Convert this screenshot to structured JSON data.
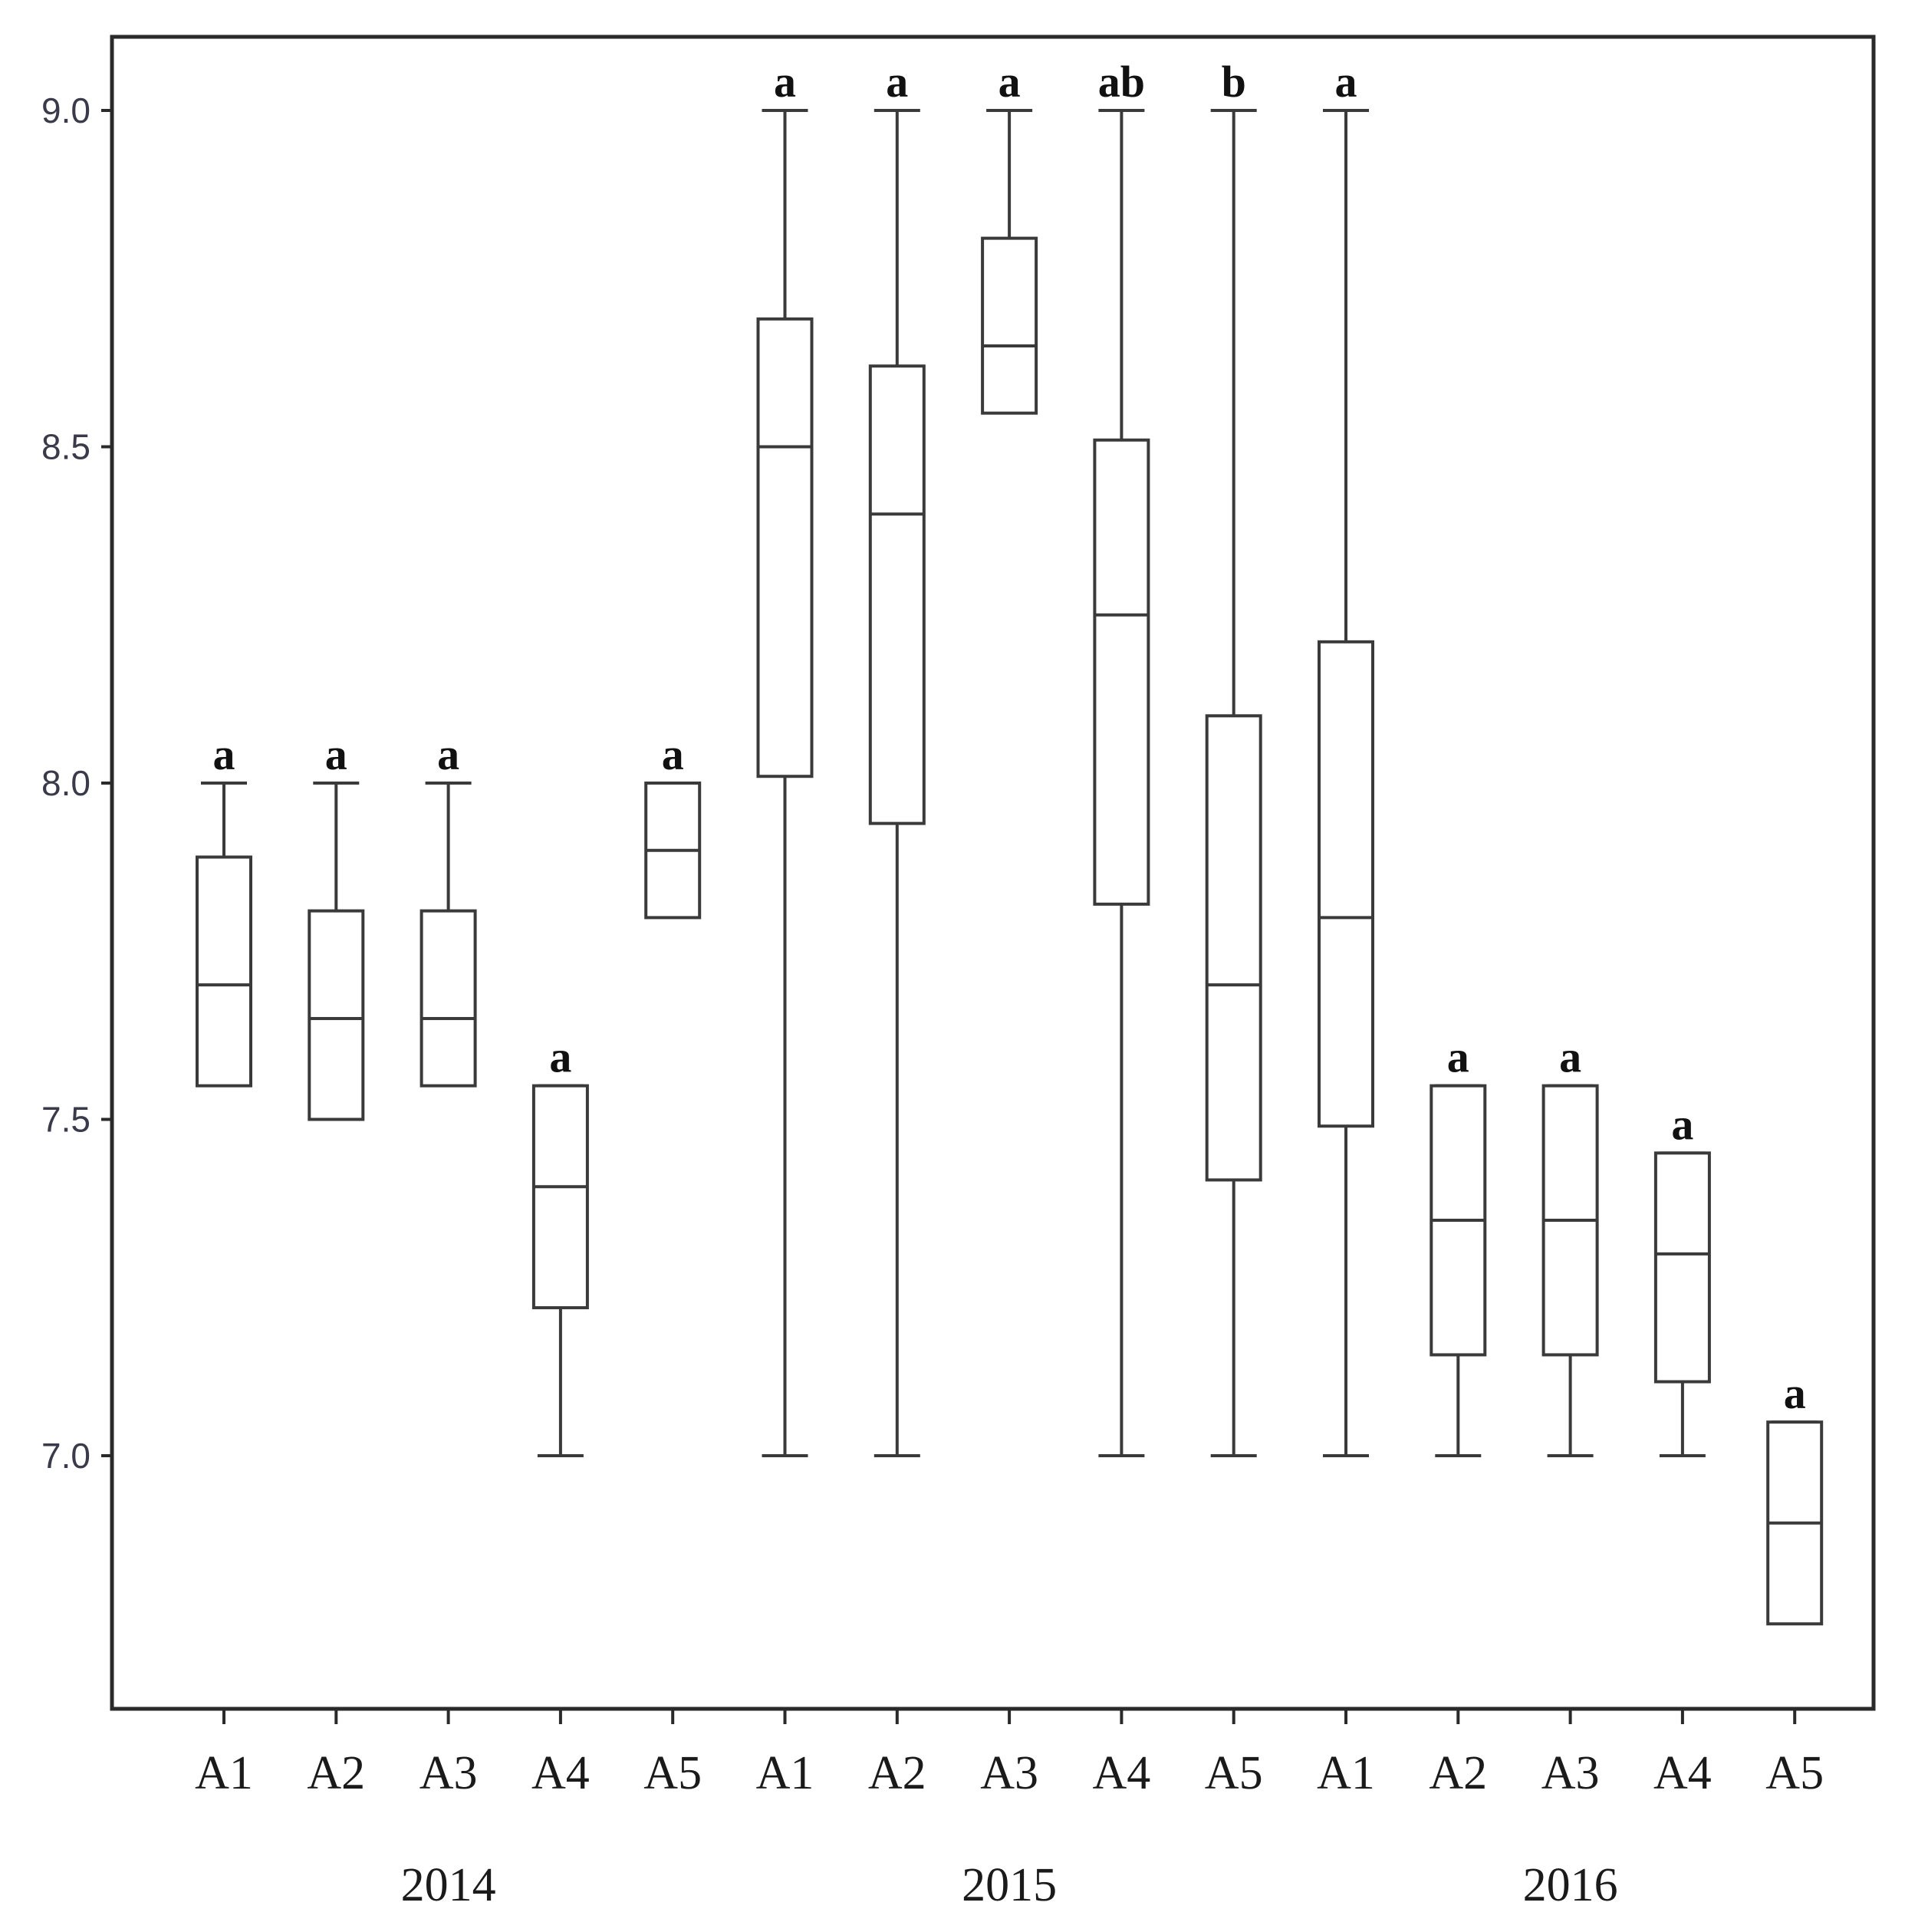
{
  "chart_data": {
    "type": "box",
    "title": "",
    "xlabel": "",
    "ylabel": "",
    "ylim": [
      6.64,
      9.1
    ],
    "yticks": [
      "7.0",
      "7.5",
      "8.0",
      "8.5",
      "9.0"
    ],
    "ytick_values": [
      7.0,
      7.5,
      8.0,
      8.5,
      9.0
    ],
    "grid": false,
    "legend": "none",
    "groups": [
      {
        "label": "2014",
        "start": 0,
        "end": 4
      },
      {
        "label": "2015",
        "start": 5,
        "end": 9
      },
      {
        "label": "2016",
        "start": 10,
        "end": 14
      }
    ],
    "boxes": [
      {
        "category": "A1",
        "whisker_low": 7.55,
        "q1": 7.55,
        "median": 7.7,
        "q3": 7.89,
        "whisker_high": 8.0,
        "sig": "a"
      },
      {
        "category": "A2",
        "whisker_low": 7.5,
        "q1": 7.5,
        "median": 7.65,
        "q3": 7.81,
        "whisker_high": 8.0,
        "sig": "a"
      },
      {
        "category": "A3",
        "whisker_low": 7.55,
        "q1": 7.55,
        "median": 7.65,
        "q3": 7.81,
        "whisker_high": 8.0,
        "sig": "a"
      },
      {
        "category": "A4",
        "whisker_low": 7.0,
        "q1": 7.22,
        "median": 7.4,
        "q3": 7.55,
        "whisker_high": 7.55,
        "sig": "a"
      },
      {
        "category": "A5",
        "whisker_low": 7.8,
        "q1": 7.8,
        "median": 7.9,
        "q3": 8.0,
        "whisker_high": 8.0,
        "sig": "a"
      },
      {
        "category": "A1",
        "whisker_low": 7.0,
        "q1": 8.01,
        "median": 8.5,
        "q3": 8.69,
        "whisker_high": 9.0,
        "sig": "a"
      },
      {
        "category": "A2",
        "whisker_low": 7.0,
        "q1": 7.94,
        "median": 8.4,
        "q3": 8.62,
        "whisker_high": 9.0,
        "sig": "a"
      },
      {
        "category": "A3",
        "whisker_low": 8.55,
        "q1": 8.55,
        "median": 8.65,
        "q3": 8.81,
        "whisker_high": 9.0,
        "sig": "a"
      },
      {
        "category": "A4",
        "whisker_low": 7.0,
        "q1": 7.82,
        "median": 8.25,
        "q3": 8.51,
        "whisker_high": 9.0,
        "sig": "ab"
      },
      {
        "category": "A5",
        "whisker_low": 7.0,
        "q1": 7.41,
        "median": 7.7,
        "q3": 8.1,
        "whisker_high": 9.0,
        "sig": "b"
      },
      {
        "category": "A1",
        "whisker_low": 7.0,
        "q1": 7.49,
        "median": 7.8,
        "q3": 8.21,
        "whisker_high": 9.0,
        "sig": "a"
      },
      {
        "category": "A2",
        "whisker_low": 7.0,
        "q1": 7.15,
        "median": 7.35,
        "q3": 7.55,
        "whisker_high": 7.55,
        "sig": "a"
      },
      {
        "category": "A3",
        "whisker_low": 7.0,
        "q1": 7.15,
        "median": 7.35,
        "q3": 7.55,
        "whisker_high": 7.55,
        "sig": "a"
      },
      {
        "category": "A4",
        "whisker_low": 7.0,
        "q1": 7.11,
        "median": 7.3,
        "q3": 7.45,
        "whisker_high": 7.45,
        "sig": "a"
      },
      {
        "category": "A5",
        "whisker_low": 6.75,
        "q1": 6.75,
        "median": 6.9,
        "q3": 7.05,
        "whisker_high": 7.05,
        "sig": "a"
      }
    ]
  }
}
